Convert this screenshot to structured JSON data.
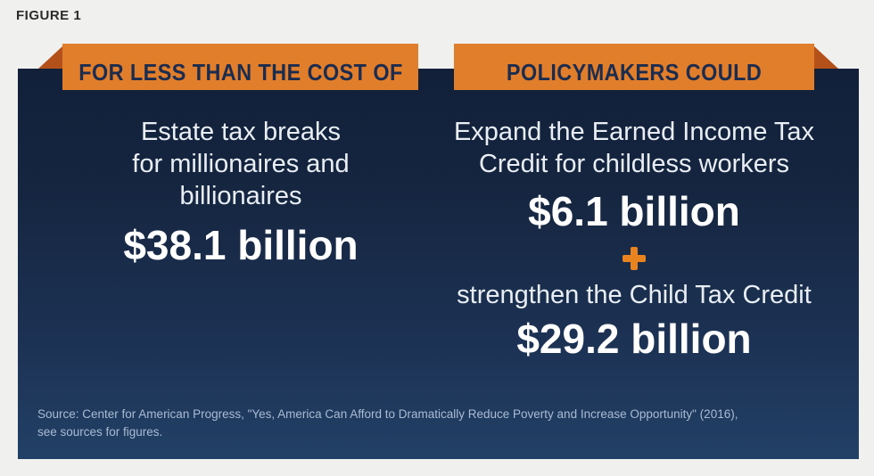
{
  "figure_label": "FIGURE 1",
  "left": {
    "banner_label": "FOR LESS THAN THE COST OF",
    "desc_lines": [
      "Estate tax breaks",
      "for millionaires and",
      "billionaires"
    ],
    "amount": "$38.1 billion"
  },
  "right": {
    "banner_label": "POLICYMAKERS COULD",
    "item1_desc_lines": [
      "Expand the Earned Income Tax",
      "Credit for childless workers"
    ],
    "item1_amount": "$6.1 billion",
    "plus_symbol": "+",
    "item2_desc": "strengthen the Child Tax Credit",
    "item2_amount": "$29.2 billion"
  },
  "source": {
    "line1": "Source: Center for American Progress, \"Yes, America Can Afford to Dramatically Reduce Poverty and Increase Opportunity\" (2016),",
    "line2": "see sources for figures."
  },
  "icons": {
    "plus": "plus-sign"
  },
  "colors": {
    "banner_orange": "#E17E2B",
    "fold_dark_orange": "#B4511A",
    "plus_orange": "#E8831F",
    "panel_navy_top": "#12203A",
    "panel_navy_bottom": "#224066",
    "banner_text_navy": "#1C2C4E",
    "desc_text": "#E9EEF4",
    "amount_text": "#FFFFFF",
    "source_text": "#A9BCD3",
    "page_background": "#F0F0EE",
    "figure_label_text": "#2B2B2B"
  },
  "chart_data": {
    "type": "table",
    "title": "FIGURE 1",
    "categories": [
      "Estate tax breaks for millionaires and billionaires",
      "Expand the Earned Income Tax Credit for childless workers",
      "strengthen the Child Tax Credit"
    ],
    "values": [
      38.1,
      6.1,
      29.2
    ],
    "unit": "billion USD",
    "groups": [
      {
        "heading": "FOR LESS THAN THE COST OF",
        "items": [
          {
            "label": "Estate tax breaks for millionaires and billionaires",
            "value": 38.1
          }
        ]
      },
      {
        "heading": "POLICYMAKERS COULD",
        "items": [
          {
            "label": "Expand the Earned Income Tax Credit for childless workers",
            "value": 6.1
          },
          {
            "label": "strengthen the Child Tax Credit",
            "value": 29.2
          }
        ]
      }
    ],
    "source": "Center for American Progress, \"Yes, America Can Afford to Dramatically Reduce Poverty and Increase Opportunity\" (2016)"
  }
}
